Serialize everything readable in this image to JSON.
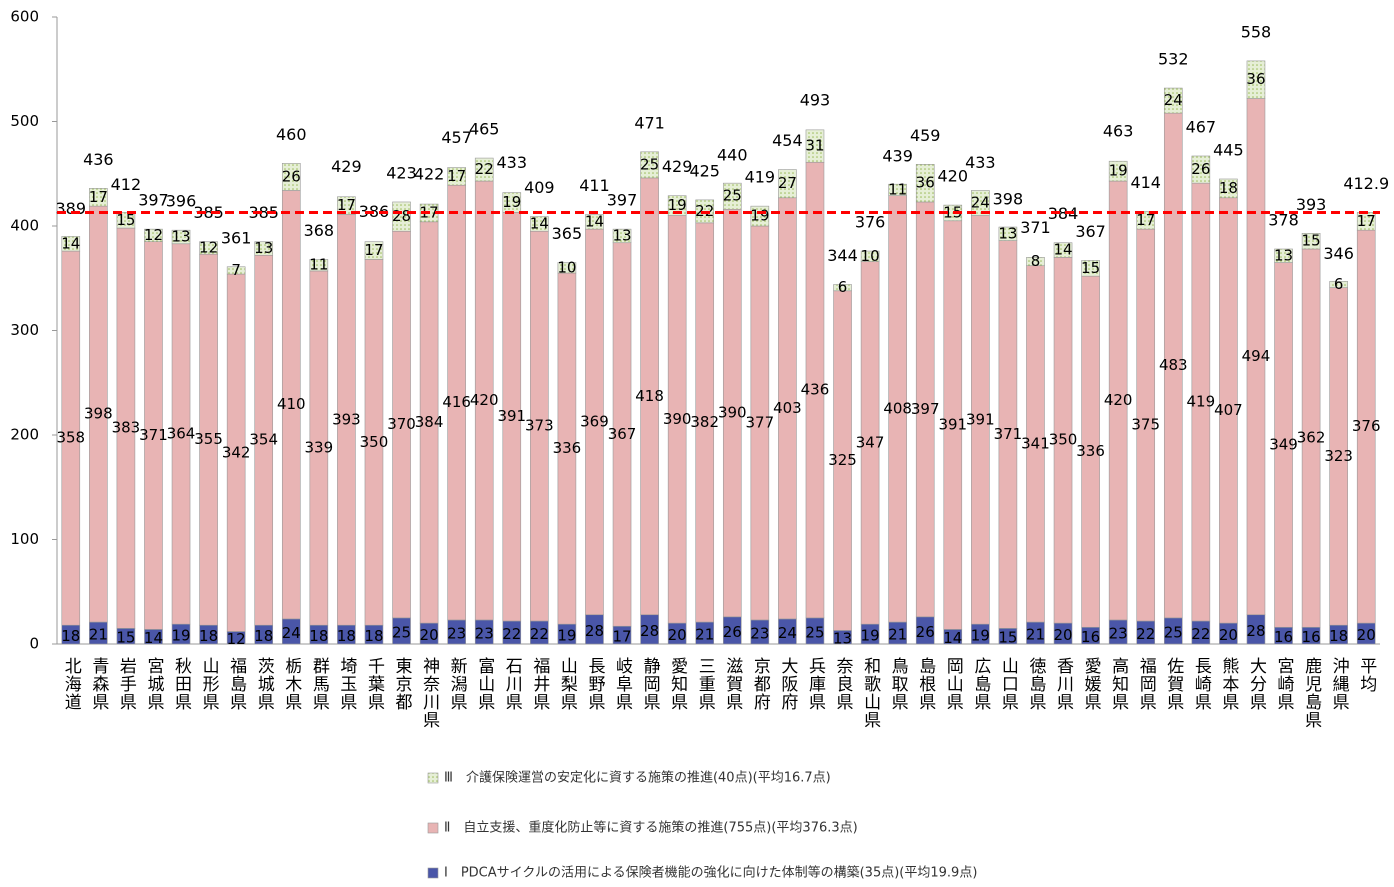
{
  "chart_data": {
    "type": "stacked_bar",
    "categories": [
      "北海道",
      "青森県",
      "岩手県",
      "宮城県",
      "秋田県",
      "山形県",
      "福島県",
      "茨城県",
      "栃木県",
      "群馬県",
      "埼玉県",
      "千葉県",
      "東京都",
      "神奈川県",
      "新潟県",
      "富山県",
      "石川県",
      "福井県",
      "山梨県",
      "長野県",
      "岐阜県",
      "静岡県",
      "愛知県",
      "三重県",
      "滋賀県",
      "京都府",
      "大阪府",
      "兵庫県",
      "奈良県",
      "和歌山県",
      "鳥取県",
      "島根県",
      "岡山県",
      "広島県",
      "山口県",
      "徳島県",
      "香川県",
      "愛媛県",
      "高知県",
      "福岡県",
      "佐賀県",
      "長崎県",
      "熊本県",
      "大分県",
      "宮崎県",
      "鹿児島県",
      "沖縄県",
      "平均"
    ],
    "series": [
      {
        "name": "Ⅰ　PDCAサイクルの活用による保険者機能の強化に向けた体制等の構築(35点)(平均19.9点)",
        "color": "#4a56a8",
        "values": [
          18,
          21,
          15,
          14,
          19,
          18,
          12,
          18,
          24,
          18,
          18,
          18,
          25,
          20,
          23,
          23,
          22,
          22,
          19,
          28,
          17,
          28,
          20,
          21,
          26,
          23,
          24,
          25,
          13,
          19,
          21,
          26,
          14,
          19,
          15,
          21,
          20,
          16,
          23,
          22,
          25,
          22,
          20,
          28,
          16,
          16,
          18,
          20
        ]
      },
      {
        "name": "Ⅱ　自立支援、重度化防止等に資する施策の推進(755点)(平均376.3点)",
        "color": "#e8b4b4",
        "values": [
          358,
          398,
          383,
          371,
          364,
          355,
          342,
          354,
          410,
          339,
          393,
          350,
          370,
          384,
          416,
          420,
          391,
          373,
          336,
          369,
          367,
          418,
          390,
          382,
          390,
          377,
          403,
          436,
          325,
          347,
          408,
          397,
          391,
          391,
          371,
          341,
          350,
          336,
          420,
          375,
          483,
          419,
          407,
          494,
          349,
          362,
          323,
          376
        ]
      },
      {
        "name": "Ⅲ　介護保険運営の安定化に資する施策の推進(40点)(平均16.7点)",
        "color": "#dbe8c4",
        "values": [
          14,
          17,
          15,
          12,
          13,
          12,
          7,
          13,
          26,
          11,
          17,
          17,
          28,
          17,
          17,
          22,
          19,
          14,
          10,
          14,
          13,
          25,
          19,
          22,
          25,
          19,
          27,
          31,
          6,
          10,
          11,
          36,
          15,
          24,
          13,
          8,
          14,
          15,
          19,
          17,
          24,
          26,
          18,
          36,
          13,
          15,
          6,
          17
        ]
      }
    ],
    "totals": [
      389,
      436,
      412,
      397,
      396,
      385,
      361,
      385,
      460,
      368,
      429,
      386,
      423,
      422,
      457,
      465,
      433,
      409,
      365,
      411,
      397,
      471,
      429,
      425,
      440,
      419,
      454,
      493,
      344,
      376,
      439,
      459,
      420,
      433,
      398,
      371,
      384,
      367,
      463,
      414,
      532,
      467,
      445,
      558,
      378,
      393,
      346,
      412.9
    ],
    "reference_line": {
      "value": 412.9,
      "color": "#ff0000"
    },
    "ylim": [
      0,
      600
    ],
    "yticks": [
      0,
      100,
      200,
      300,
      400,
      500,
      600
    ],
    "grid": false
  }
}
